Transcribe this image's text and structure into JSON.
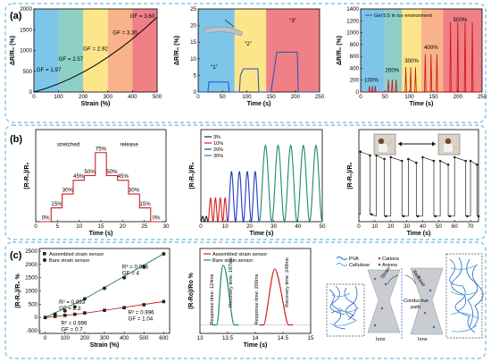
{
  "panel_labels": [
    "(a)",
    "(b)",
    "(c)"
  ],
  "chart_data": [
    {
      "id": "a1",
      "type": "line",
      "xlabel": "Strain (%)",
      "ylabel": "ΔR/R₀ (%)",
      "xlim": [
        0,
        500
      ],
      "ylim": [
        0,
        2000
      ],
      "xticks": [
        0,
        100,
        200,
        300,
        400,
        500
      ],
      "yticks": [
        0,
        500,
        1000,
        1500,
        2000
      ],
      "bands": [
        {
          "from": 0,
          "to": 100,
          "color": "#7ec5ea"
        },
        {
          "from": 100,
          "to": 200,
          "color": "#8fd0c6"
        },
        {
          "from": 200,
          "to": 300,
          "color": "#fde58a"
        },
        {
          "from": 300,
          "to": 400,
          "color": "#f9b38a"
        },
        {
          "from": 400,
          "to": 500,
          "color": "#f07f86"
        }
      ],
      "annotations": [
        {
          "text": "GF = 1.97",
          "x": 60,
          "y": 500
        },
        {
          "text": "GF = 2.57",
          "x": 150,
          "y": 750
        },
        {
          "text": "GF = 2.92",
          "x": 250,
          "y": 1000
        },
        {
          "text": "GF = 3.30",
          "x": 370,
          "y": 1390
        },
        {
          "text": "GF = 3.60",
          "x": 440,
          "y": 1790
        }
      ],
      "series": [
        {
          "x": [
            0,
            50,
            100,
            150,
            200,
            250,
            300,
            350,
            400,
            450,
            500
          ],
          "y": [
            0,
            90,
            200,
            330,
            480,
            650,
            840,
            1050,
            1280,
            1530,
            1800
          ],
          "color": "#000000"
        }
      ]
    },
    {
      "id": "a2",
      "type": "line",
      "xlabel": "Time (s)",
      "ylabel": "ΔR/R₀ (%)",
      "xlim": [
        0,
        250
      ],
      "ylim": [
        0,
        25
      ],
      "xticks": [
        0,
        50,
        100,
        150,
        200,
        250
      ],
      "yticks": [
        0,
        5,
        10,
        15,
        20,
        25
      ],
      "bands": [
        {
          "from": 0,
          "to": 75,
          "color": "#7ec5ea"
        },
        {
          "from": 75,
          "to": 140,
          "color": "#fde58a"
        },
        {
          "from": 140,
          "to": 250,
          "color": "#f07f86"
        }
      ],
      "annotations": [
        {
          "text": "“1”",
          "x": 33,
          "y": 7
        },
        {
          "text": "“2”",
          "x": 103,
          "y": 14
        },
        {
          "text": "“3”",
          "x": 195,
          "y": 21
        }
      ],
      "series": [
        {
          "x": [
            0,
            20,
            22,
            62,
            64,
            85,
            87,
            93,
            123,
            125,
            150,
            155,
            162,
            204,
            206,
            250
          ],
          "y": [
            0,
            0,
            3,
            3,
            0,
            0,
            5,
            7,
            7,
            0,
            0,
            5,
            12,
            12,
            0,
            0
          ],
          "color": "#1f55c4"
        }
      ]
    },
    {
      "id": "a3",
      "type": "line",
      "xlabel": "Time (s)",
      "ylabel": "ΔR/R₀ (%)",
      "xlim": [
        0,
        250
      ],
      "ylim": [
        0,
        1400
      ],
      "xticks": [
        0,
        50,
        100,
        150,
        200,
        250
      ],
      "yticks": [
        0,
        200,
        400,
        600,
        800,
        1000,
        1200,
        1400
      ],
      "legend": "Gel 5:5 in ice environment",
      "bands": [
        {
          "from": 0,
          "to": 50,
          "color": "#7ec5ea"
        },
        {
          "from": 50,
          "to": 85,
          "color": "#8fd0c6"
        },
        {
          "from": 85,
          "to": 125,
          "color": "#fde58a"
        },
        {
          "from": 125,
          "to": 170,
          "color": "#f9b38a"
        },
        {
          "from": 170,
          "to": 250,
          "color": "#f07f86"
        }
      ],
      "annotations": [
        {
          "text": "100%",
          "x": 22,
          "y": 170
        },
        {
          "text": "200%",
          "x": 65,
          "y": 340
        },
        {
          "text": "300%",
          "x": 105,
          "y": 500
        },
        {
          "text": "400%",
          "x": 145,
          "y": 720
        },
        {
          "text": "500%",
          "x": 205,
          "y": 1190
        }
      ],
      "peaks": [
        {
          "x": 18,
          "y": 100
        },
        {
          "x": 24,
          "y": 100
        },
        {
          "x": 30,
          "y": 100
        },
        {
          "x": 57,
          "y": 210
        },
        {
          "x": 65,
          "y": 210
        },
        {
          "x": 73,
          "y": 210
        },
        {
          "x": 93,
          "y": 420
        },
        {
          "x": 103,
          "y": 420
        },
        {
          "x": 113,
          "y": 420
        },
        {
          "x": 133,
          "y": 640
        },
        {
          "x": 145,
          "y": 640
        },
        {
          "x": 157,
          "y": 640
        },
        {
          "x": 185,
          "y": 1180
        },
        {
          "x": 200,
          "y": 1180
        },
        {
          "x": 215,
          "y": 1180
        },
        {
          "x": 230,
          "y": 1180
        }
      ],
      "color": "#cc1111"
    },
    {
      "id": "b1",
      "type": "line",
      "xlabel": "Time (s)",
      "ylabel": "(R-R₀)/R₀",
      "xlim": [
        0,
        30
      ],
      "ylim": [
        0,
        100
      ],
      "xticks": [
        0,
        5,
        10,
        15,
        20,
        25,
        30
      ],
      "yticks": [],
      "annotations": [
        {
          "text": "stretched",
          "x": 7.5,
          "y": 82
        },
        {
          "text": "release",
          "x": 21.5,
          "y": 82
        }
      ],
      "steps": [
        0,
        15,
        30,
        45,
        50,
        75,
        50,
        45,
        30,
        15,
        0
      ],
      "step_labels": [
        "0%",
        "15%",
        "30%",
        "45%",
        "50%",
        "75%",
        "50%",
        "45%",
        "30%",
        "15%",
        "0%"
      ],
      "color": "#d42020"
    },
    {
      "id": "b2",
      "type": "line",
      "xlabel": "Time (s)",
      "ylabel": "(R-R₀)/R₀",
      "xlim": [
        0,
        50
      ],
      "ylim": [
        0,
        35
      ],
      "xticks": [
        0,
        10,
        20,
        30,
        40,
        50
      ],
      "yticks": [],
      "legend_series": [
        {
          "name": "3%",
          "color": "#222222"
        },
        {
          "name": "10%",
          "color": "#d42020"
        },
        {
          "name": "20%",
          "color": "#2238c4"
        },
        {
          "name": "30%",
          "color": "#1b8a6b"
        }
      ],
      "waves": [
        {
          "from": 0,
          "to": 3,
          "amp": 2,
          "cycles": 2,
          "color": "#222222"
        },
        {
          "from": 3,
          "to": 11,
          "amp": 9,
          "cycles": 4,
          "color": "#d42020"
        },
        {
          "from": 11,
          "to": 24,
          "amp": 19,
          "cycles": 4,
          "color": "#2238c4"
        },
        {
          "from": 24,
          "to": 50,
          "amp": 29,
          "cycles": 5,
          "color": "#1b8a6b"
        }
      ]
    },
    {
      "id": "b3",
      "type": "line",
      "xlabel": "Time (s)",
      "ylabel": "(R-R₀)/R₀",
      "xlim": [
        0,
        75
      ],
      "ylim": [
        0,
        50
      ],
      "xticks": [
        0,
        10,
        20,
        30,
        40,
        50,
        60,
        70
      ],
      "yticks": [],
      "plateaus": [
        {
          "from": 1,
          "to": 7,
          "y": 38,
          "low": 4
        },
        {
          "from": 11,
          "to": 16,
          "y": 36,
          "low": 3
        },
        {
          "from": 20,
          "to": 27,
          "y": 35,
          "low": 3
        },
        {
          "from": 31,
          "to": 36,
          "y": 34,
          "low": 3
        },
        {
          "from": 40,
          "to": 47,
          "y": 35,
          "low": 3
        },
        {
          "from": 51,
          "to": 56,
          "y": 33,
          "low": 3
        },
        {
          "from": 60,
          "to": 67,
          "y": 35,
          "low": 3
        },
        {
          "from": 70,
          "to": 74,
          "y": 33,
          "low": 3
        }
      ],
      "color": "#222222"
    },
    {
      "id": "c1",
      "type": "scatter",
      "xlabel": "Strain (%)",
      "ylabel": "(R-R₀)/R₀ %",
      "xlim": [
        -30,
        630
      ],
      "ylim": [
        -600,
        2600
      ],
      "xticks": [
        0,
        100,
        200,
        300,
        400,
        500,
        600
      ],
      "yticks": [
        -500,
        0,
        500,
        1000,
        1500,
        2000,
        2500
      ],
      "series": [
        {
          "name": "Assembled strain sensor",
          "marker": "square",
          "color": "#222222",
          "x": [
            0,
            50,
            100,
            150,
            200,
            300,
            400,
            500,
            600
          ],
          "y": [
            0,
            40,
            80,
            120,
            170,
            270,
            370,
            480,
            600
          ]
        },
        {
          "name": "Bare strain sensor",
          "marker": "circle",
          "color": "#222222",
          "x": [
            0,
            50,
            100,
            150,
            200,
            300,
            400,
            500,
            600
          ],
          "y": [
            0,
            120,
            250,
            400,
            700,
            1100,
            1500,
            1900,
            2400
          ]
        }
      ],
      "fits": [
        {
          "x0": 0,
          "y0": 0,
          "x1": 200,
          "y1": 700,
          "color": "#1b8a3a",
          "text": "R² = 0.993",
          "text2": "GF = 2.3",
          "tx": 70,
          "ty": 520
        },
        {
          "x0": 200,
          "y0": 700,
          "x1": 600,
          "y1": 2400,
          "color": "#1b8a3a",
          "text": "R² = 0.996",
          "text2": "GF = 4",
          "tx": 390,
          "ty": 1850
        },
        {
          "x0": 0,
          "y0": 0,
          "x1": 200,
          "y1": 160,
          "color": "#d42020",
          "text": "R² = 0.996",
          "text2": "GF = 0.7",
          "tx": 80,
          "ty": -280
        },
        {
          "x0": 200,
          "y0": 160,
          "x1": 600,
          "y1": 600,
          "color": "#d42020",
          "text": "R² = 0.996",
          "text2": "GF = 1.04",
          "tx": 420,
          "ty": 130
        }
      ]
    },
    {
      "id": "c2",
      "type": "line",
      "xlabel": "Time (s)",
      "ylabel": "(R-Ro)/Ro %",
      "xlim": [
        13,
        15
      ],
      "ylim": [
        0,
        50
      ],
      "xticks": [
        13.0,
        13.5,
        14.0,
        14.5,
        15.0
      ],
      "yticks": [],
      "legend_series": [
        {
          "name": "Assembled strain sensor",
          "color": "#d42020"
        },
        {
          "name": "Bare strain sensor",
          "color": "#1b8a6b"
        }
      ],
      "pulses": [
        {
          "start": 13.3,
          "peak": 13.42,
          "end": 13.62,
          "height": 40,
          "color": "#1b8a6b"
        },
        {
          "start": 14.15,
          "peak": 14.35,
          "end": 14.6,
          "height": 38,
          "color": "#d42020"
        }
      ],
      "labels": [
        {
          "text": "Response time: 124ms",
          "x": 13.24,
          "y": 20,
          "color": "#1b8a6b"
        },
        {
          "text": "Recovery time: 187ms",
          "x": 13.58,
          "y": 30,
          "color": "#1b8a6b"
        },
        {
          "text": "Response time: 200ms",
          "x": 14.05,
          "y": 20,
          "color": "#d42020"
        },
        {
          "text": "Recovery time: 248ms",
          "x": 14.6,
          "y": 30,
          "color": "#d42020"
        }
      ]
    }
  ],
  "schematic": {
    "legend": [
      "PVA",
      "Cellulose",
      "Cations",
      "Anions"
    ],
    "labels": [
      "Strain",
      "Release",
      "Conductive path",
      "Ions",
      "Ions"
    ]
  }
}
